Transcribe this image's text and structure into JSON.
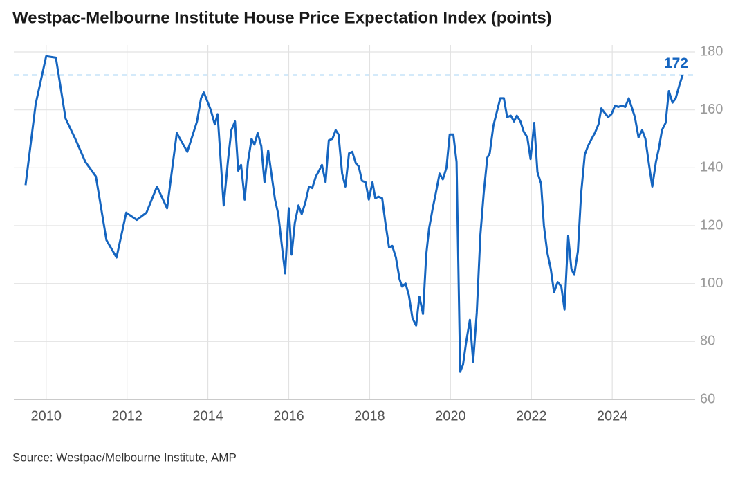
{
  "chart_data": {
    "type": "line",
    "title": "Westpac-Melbourne Institute House Price Expectation Index (points)",
    "source": "Source: Westpac/Melbourne Institute, AMP",
    "reference_line": 172,
    "xlim": [
      2009.2,
      2026.05
    ],
    "xticks": [
      2010,
      2012,
      2014,
      2016,
      2018,
      2020,
      2022,
      2024
    ],
    "ylim": [
      60,
      180
    ],
    "yticks": [
      60,
      80,
      100,
      120,
      140,
      160,
      180
    ],
    "grid": true,
    "series": [
      {
        "color": "#1565c0",
        "x": [
          2009.49,
          2009.74,
          2010.0,
          2010.24,
          2010.48,
          2010.72,
          2010.97,
          2011.23,
          2011.49,
          2011.74,
          2011.98,
          2012.24,
          2012.48,
          2012.74,
          2012.99,
          2013.23,
          2013.49,
          2013.73,
          2013.83,
          2013.9,
          2014.07,
          2014.17,
          2014.24,
          2014.39,
          2014.5,
          2014.58,
          2014.67,
          2014.75,
          2014.82,
          2014.91,
          2014.99,
          2015.08,
          2015.15,
          2015.23,
          2015.32,
          2015.4,
          2015.49,
          2015.57,
          2015.66,
          2015.74,
          2015.83,
          2015.91,
          2016.0,
          2016.07,
          2016.15,
          2016.24,
          2016.32,
          2016.41,
          2016.5,
          2016.58,
          2016.67,
          2016.75,
          2016.82,
          2016.91,
          2016.99,
          2017.08,
          2017.16,
          2017.23,
          2017.32,
          2017.4,
          2017.49,
          2017.57,
          2017.66,
          2017.73,
          2017.81,
          2017.9,
          2017.98,
          2018.07,
          2018.14,
          2018.22,
          2018.31,
          2018.39,
          2018.48,
          2018.56,
          2018.65,
          2018.74,
          2018.8,
          2018.89,
          2018.97,
          2019.06,
          2019.15,
          2019.23,
          2019.32,
          2019.4,
          2019.47,
          2019.56,
          2019.64,
          2019.73,
          2019.81,
          2019.9,
          2019.98,
          2020.07,
          2020.15,
          2020.24,
          2020.31,
          2020.39,
          2020.48,
          2020.56,
          2020.65,
          2020.74,
          2020.82,
          2020.91,
          2020.97,
          2021.06,
          2021.15,
          2021.23,
          2021.32,
          2021.4,
          2021.49,
          2021.57,
          2021.64,
          2021.73,
          2021.81,
          2021.9,
          2021.98,
          2022.07,
          2022.15,
          2022.24,
          2022.31,
          2022.39,
          2022.48,
          2022.56,
          2022.65,
          2022.74,
          2022.82,
          2022.91,
          2022.99,
          2023.06,
          2023.15,
          2023.23,
          2023.32,
          2023.4,
          2023.49,
          2023.57,
          2023.66,
          2023.73,
          2023.81,
          2023.9,
          2023.98,
          2024.07,
          2024.15,
          2024.24,
          2024.32,
          2024.41,
          2024.48,
          2024.56,
          2024.65,
          2024.74,
          2024.82,
          2024.91,
          2024.99,
          2025.08,
          2025.15,
          2025.23,
          2025.32,
          2025.4,
          2025.49,
          2025.57,
          2025.66,
          2025.74
        ],
        "values": [
          134,
          162,
          178.5,
          178,
          157,
          150,
          142,
          137,
          115,
          109,
          124.5,
          122,
          124.5,
          133.5,
          126,
          152,
          145.5,
          156,
          164,
          166,
          160,
          155,
          158.5,
          127,
          143,
          153,
          156,
          139,
          141,
          129,
          142,
          150,
          148,
          152,
          147.5,
          135,
          146,
          138,
          129,
          124,
          113,
          103.5,
          126,
          110,
          121,
          127,
          124,
          128,
          133.5,
          133,
          137,
          139,
          141,
          135,
          149.5,
          150,
          153,
          151.5,
          138,
          133.5,
          145,
          145.5,
          141.5,
          140.5,
          135.5,
          135,
          129,
          135,
          129.5,
          130,
          129.5,
          121,
          112.5,
          113,
          109,
          101.5,
          99,
          100,
          96,
          88,
          85.5,
          95.5,
          89.5,
          110,
          119,
          126,
          131.5,
          138,
          136,
          140,
          151.5,
          151.5,
          142,
          69.5,
          72,
          80,
          87.5,
          73,
          90,
          117,
          131,
          143.5,
          145,
          154.5,
          159.5,
          164,
          164,
          157.5,
          158,
          156,
          158,
          156,
          152.5,
          150.5,
          143,
          155.5,
          138.5,
          134.5,
          120,
          111,
          105,
          97,
          100.5,
          99,
          91,
          116.5,
          105,
          103,
          111,
          131,
          144.5,
          147.5,
          150,
          152,
          155,
          160.5,
          159,
          157.5,
          158.5,
          161.5,
          161,
          161.5,
          161,
          164,
          161,
          157.5,
          150.5,
          153,
          150,
          141,
          133.5,
          142,
          146.5,
          153,
          155.5,
          166.5,
          162.5,
          164,
          168.5,
          172
        ]
      }
    ]
  }
}
